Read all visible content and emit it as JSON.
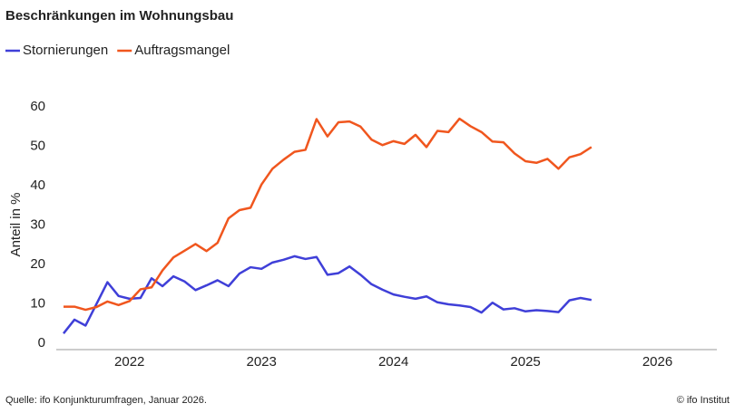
{
  "chart_data": {
    "type": "line",
    "title": "Beschränkungen im Wohnungsbau",
    "y_label": "Anteil in %",
    "source": "Quelle: ifo Konjunkturumfragen,  Januar 2026.",
    "copyright": "© ifo Institut",
    "x": [
      2022,
      2022.083,
      2022.167,
      2022.25,
      2022.333,
      2022.417,
      2022.5,
      2022.583,
      2022.667,
      2022.75,
      2022.833,
      2022.917,
      2023,
      2023.083,
      2023.167,
      2023.25,
      2023.333,
      2023.417,
      2023.5,
      2023.583,
      2023.667,
      2023.75,
      2023.833,
      2023.917,
      2024,
      2024.083,
      2024.167,
      2024.25,
      2024.333,
      2024.417,
      2024.5,
      2024.583,
      2024.667,
      2024.75,
      2024.833,
      2024.917,
      2025,
      2025.083,
      2025.167,
      2025.25,
      2025.333,
      2025.417,
      2025.5,
      2025.583,
      2025.667,
      2025.75,
      2025.833,
      2025.917,
      2026
    ],
    "series": [
      {
        "name": "Stornierungen",
        "color": "#3f3fd8",
        "values": [
          2.5,
          6,
          4.5,
          10,
          15.5,
          12,
          11.3,
          11.5,
          16.5,
          14.5,
          17,
          15.7,
          13.5,
          14.7,
          16,
          14.5,
          17.7,
          19.3,
          18.9,
          20.5,
          21.2,
          22.1,
          21.4,
          21.9,
          17.4,
          17.8,
          19.5,
          17.4,
          15,
          13.6,
          12.4,
          11.8,
          11.3,
          11.9,
          10.4,
          9.9,
          9.6,
          9.2,
          7.8,
          10.3,
          8.6,
          8.9,
          8.1,
          8.4,
          8.2,
          7.9,
          10.9,
          11.5,
          11
        ]
      },
      {
        "name": "Auftragsmangel",
        "color": "#f0561e",
        "values": [
          9.3,
          9.3,
          8.5,
          9.2,
          10.6,
          9.7,
          10.7,
          13.7,
          14.2,
          18.5,
          21.8,
          23.5,
          25.2,
          23.4,
          25.5,
          31.7,
          33.8,
          34.4,
          40.3,
          44.3,
          46.6,
          48.6,
          49.1,
          56.9,
          52.5,
          56.1,
          56.3,
          55,
          51.7,
          50.3,
          51.3,
          50.6,
          52.9,
          49.8,
          53.9,
          53.6,
          57,
          55.1,
          53.6,
          51.2,
          51,
          48.2,
          46.2,
          45.8,
          46.8,
          44.3,
          47.2,
          48,
          49.8
        ]
      }
    ],
    "xlim": [
      2021.945,
      2026.95
    ],
    "xticks": [
      {
        "value": 2022.5,
        "label": "2022"
      },
      {
        "value": 2023.5,
        "label": "2023"
      },
      {
        "value": 2024.5,
        "label": "2024"
      },
      {
        "value": 2025.5,
        "label": "2025"
      },
      {
        "value": 2026.5,
        "label": "2026"
      }
    ],
    "ylim": [
      -1.6,
      60
    ],
    "yticks": [
      0,
      10,
      20,
      30,
      40,
      50,
      60
    ],
    "grid": true
  }
}
